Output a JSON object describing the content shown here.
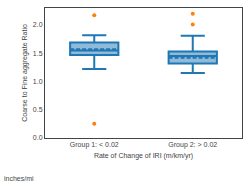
{
  "chart_data": {
    "type": "box",
    "xlabel": "Rate of Change of IRI (m/km/yr)",
    "ylabel": "Coarse to Fine aggregate Ratio",
    "annotations": [
      "inches/mi"
    ],
    "categories": [
      "Group 1: < 0.02",
      "Group 2: > 0.02"
    ],
    "boxes": [
      {
        "median": 1.55,
        "q1": 1.47,
        "q3": 1.69,
        "whisker_low": 1.22,
        "whisker_high": 1.82,
        "outliers": [
          0.25,
          2.17
        ],
        "mean": 1.57
      },
      {
        "median": 1.45,
        "q1": 1.32,
        "q3": 1.53,
        "whisker_low": 1.15,
        "whisker_high": 1.81,
        "outliers": [
          2.01,
          2.2
        ],
        "mean": 1.42
      }
    ],
    "ylim": [
      0.0,
      2.3
    ],
    "yticks": [
      {
        "value": 0.0,
        "label": "0.0"
      },
      0.5,
      {
        "value": 1.0,
        "label": "1.0"
      },
      1.5,
      {
        "value": 2.0,
        "label": "2.0"
      }
    ],
    "grid": false
  }
}
